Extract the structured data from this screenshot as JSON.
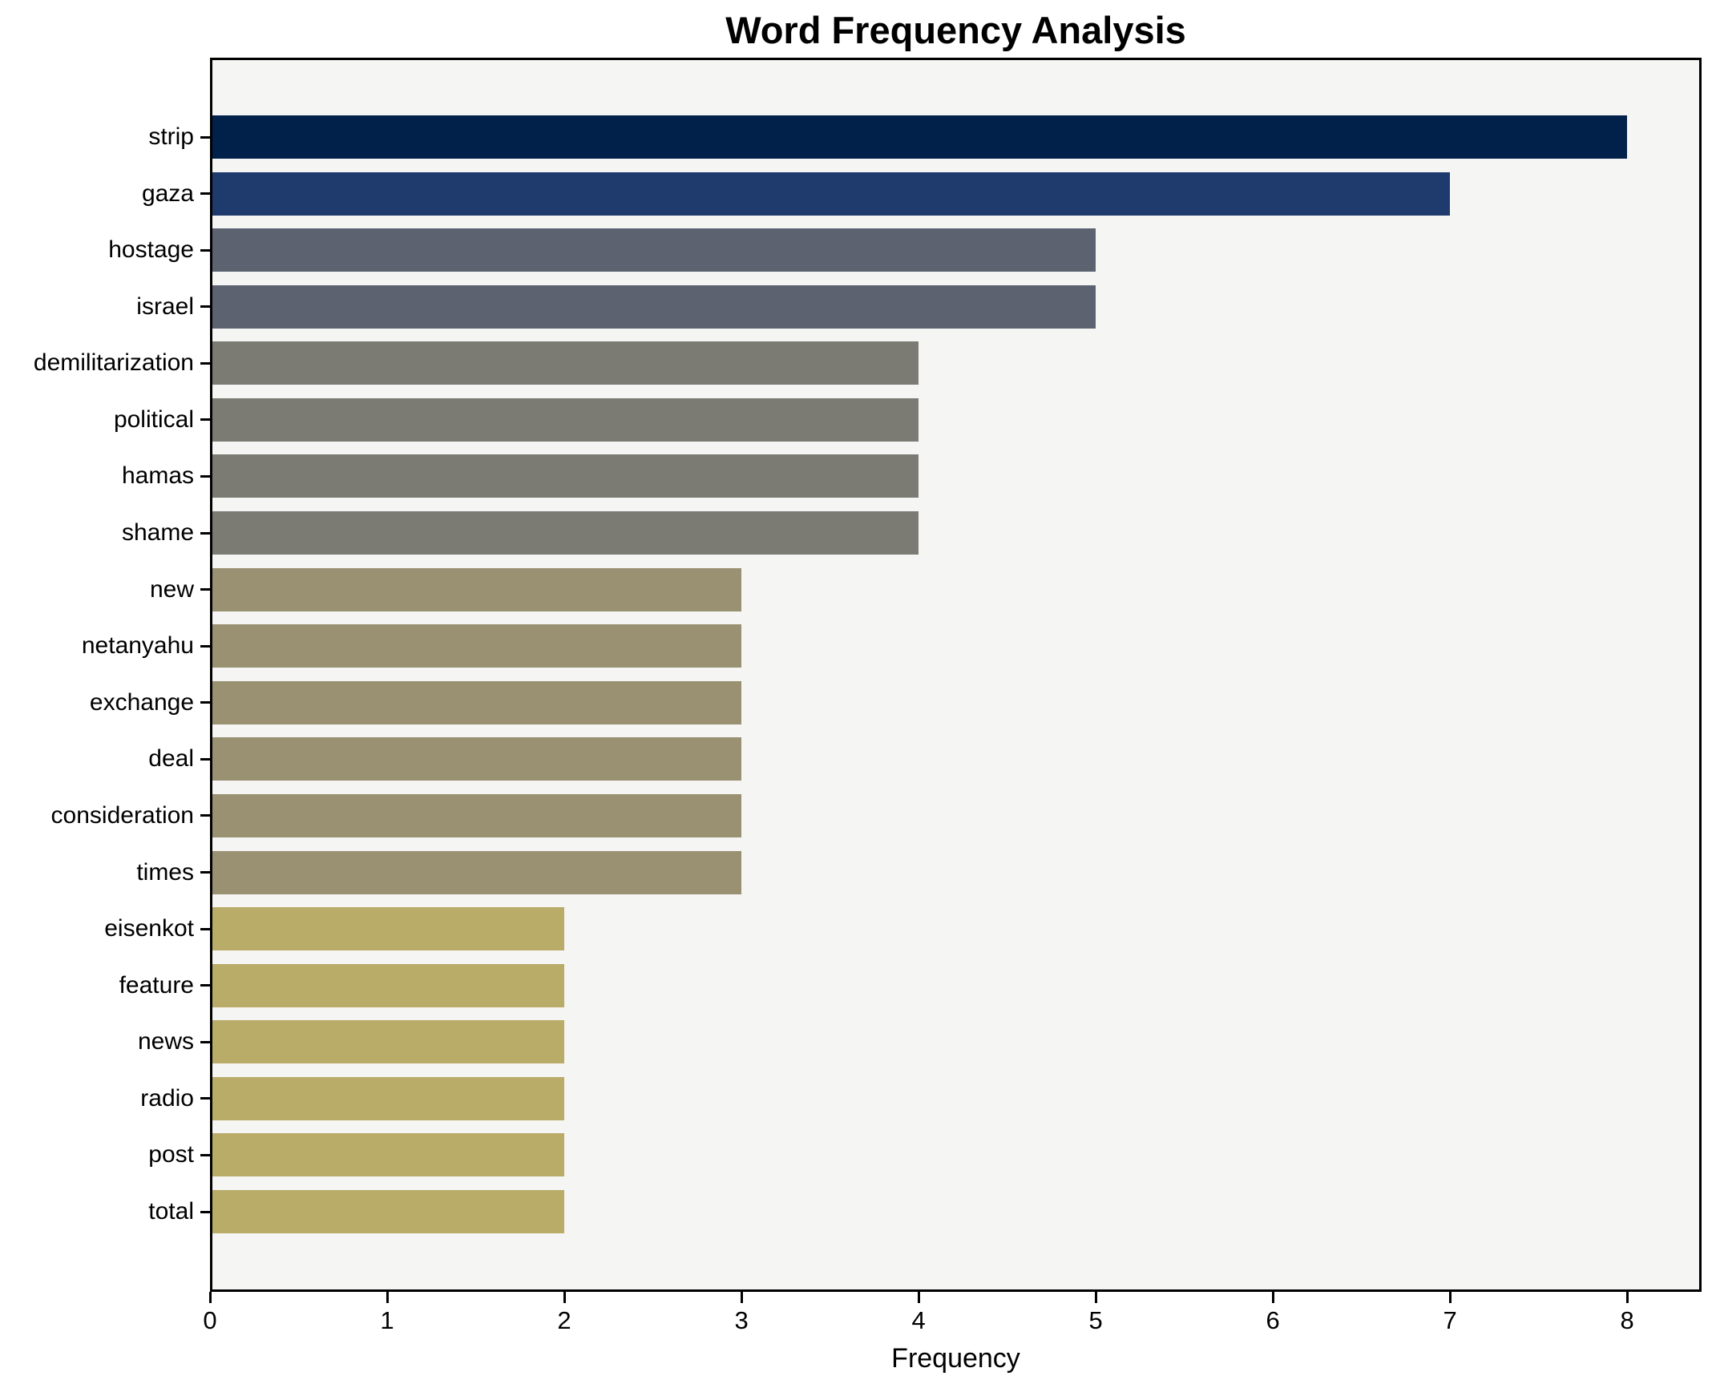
{
  "chart_data": {
    "type": "bar",
    "orientation": "horizontal",
    "title": "Word Frequency Analysis",
    "xlabel": "Frequency",
    "ylabel": "",
    "categories": [
      "strip",
      "gaza",
      "hostage",
      "israel",
      "demilitarization",
      "political",
      "hamas",
      "shame",
      "new",
      "netanyahu",
      "exchange",
      "deal",
      "consideration",
      "times",
      "eisenkot",
      "feature",
      "news",
      "radio",
      "post",
      "total"
    ],
    "values": [
      8,
      7,
      5,
      5,
      4,
      4,
      4,
      4,
      3,
      3,
      3,
      3,
      3,
      3,
      2,
      2,
      2,
      2,
      2,
      2
    ],
    "bar_colors": [
      "#01214b",
      "#1f3a6c",
      "#5c6270",
      "#5c6270",
      "#7b7b74",
      "#7b7b74",
      "#7b7b74",
      "#7b7b74",
      "#999171",
      "#999171",
      "#999171",
      "#999171",
      "#999171",
      "#999171",
      "#b9ab68",
      "#b9ab68",
      "#b9ab68",
      "#b9ab68",
      "#b9ab68",
      "#b9ab68"
    ],
    "x_ticks": [
      0,
      1,
      2,
      3,
      4,
      5,
      6,
      7,
      8
    ],
    "xlim": [
      0,
      8.42
    ],
    "grid": "off",
    "legend": "none",
    "plot_background": "#f5f5f4",
    "figure_background": "#ffffff",
    "spine_color": "#000000"
  }
}
